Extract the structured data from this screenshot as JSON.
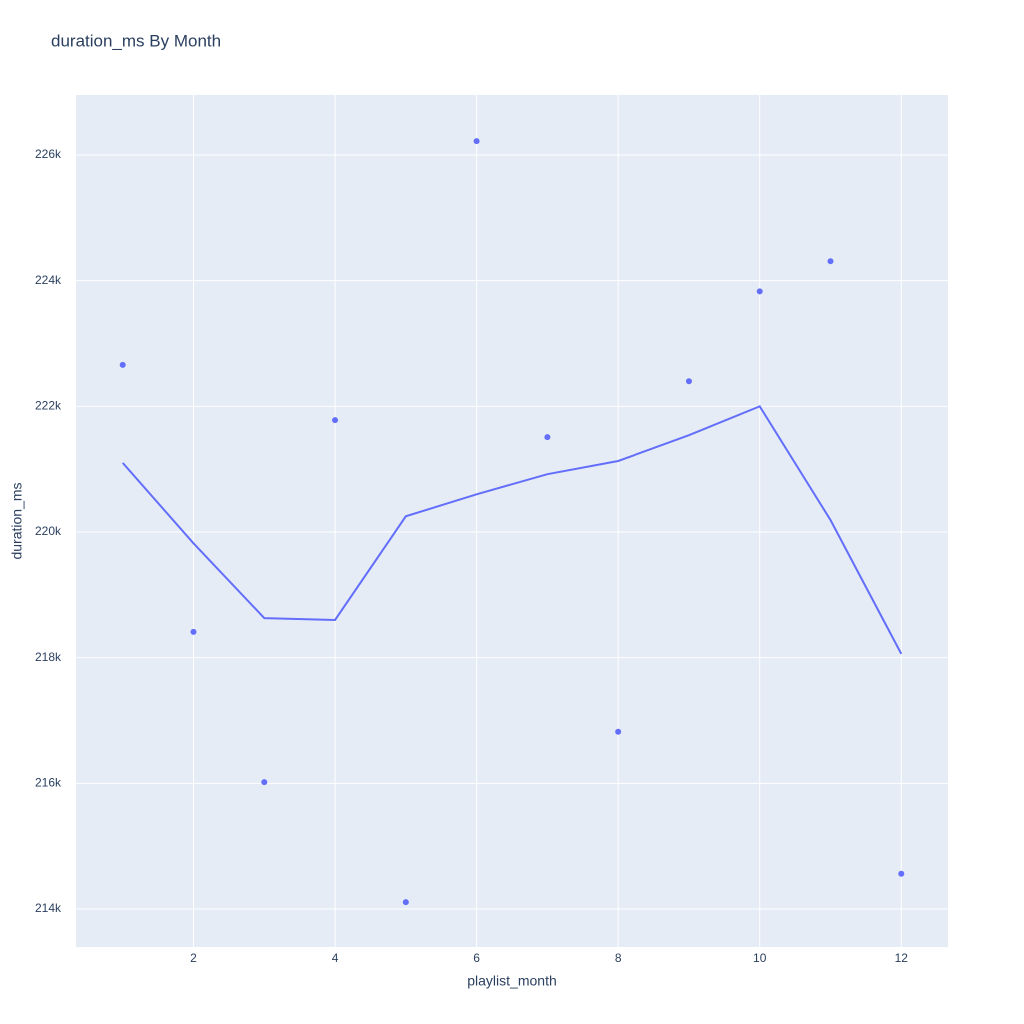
{
  "chart_data": {
    "type": "scatter",
    "title": "duration_ms By Month",
    "x_label": "playlist_month",
    "y_label": "duration_ms",
    "x": [
      1,
      2,
      3,
      4,
      5,
      6,
      7,
      8,
      9,
      10,
      11,
      12
    ],
    "series": [
      {
        "color": "#636efa",
        "mode": "markers",
        "values": [
          222660,
          218410,
          216020,
          221780,
          214110,
          226220,
          221510,
          216820,
          222400,
          223830,
          224310,
          214560
        ]
      },
      {
        "color": "#636efa",
        "mode": "lines",
        "values": [
          221100,
          219820,
          218630,
          218600,
          220250,
          220600,
          220920,
          221130,
          221540,
          222000,
          220190,
          218060
        ]
      }
    ],
    "xlim": [
      0.34,
      12.66
    ],
    "xticks": [
      2,
      4,
      6,
      8,
      10,
      12
    ],
    "ylim": [
      213395,
      226955
    ],
    "yticks": [
      {
        "value": 214000,
        "label": "214k"
      },
      {
        "value": 216000,
        "label": "216k"
      },
      {
        "value": 218000,
        "label": "218k"
      },
      {
        "value": 220000,
        "label": "220k"
      },
      {
        "value": 222000,
        "label": "222k"
      },
      {
        "value": 224000,
        "label": "224k"
      },
      {
        "value": 226000,
        "label": "226k"
      }
    ],
    "grid": true
  }
}
